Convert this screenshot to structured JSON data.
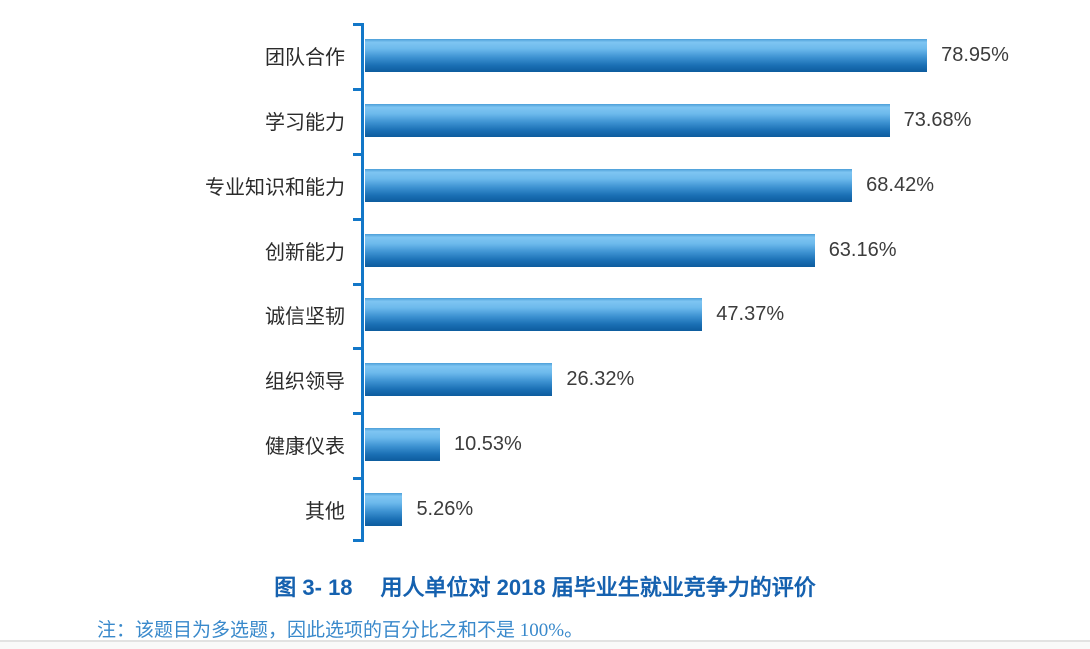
{
  "chart_data": {
    "type": "bar",
    "orientation": "horizontal",
    "categories": [
      "团队合作",
      "学习能力",
      "专业知识和能力",
      "创新能力",
      "诚信坚韧",
      "组织领导",
      "健康仪表",
      "其他"
    ],
    "values": [
      78.95,
      73.68,
      68.42,
      63.16,
      47.37,
      26.32,
      10.53,
      5.26
    ],
    "value_labels": [
      "78.95%",
      "73.68%",
      "68.42%",
      "63.16%",
      "47.37%",
      "26.32%",
      "10.53%",
      "5.26%"
    ],
    "title": "图 3- 18　用人单位对 2018 届毕业生就业竞争力的评价",
    "xlabel": "",
    "ylabel": "",
    "xlim": [
      0,
      85
    ],
    "grid": false,
    "legend": false,
    "bar_gradient_top": "#7EC5F2",
    "bar_gradient_bottom": "#0D5C9E",
    "axis_color": "#1277C8"
  },
  "caption": {
    "prefix": "图 3- 18",
    "text": "用人单位对 2018 届毕业生就业竞争力的评价"
  },
  "note": {
    "text": "注：该题目为多选题，因此选项的百分比之和不是 100%。"
  },
  "colors": {
    "title_blue": "#1561AF",
    "note_blue": "#3989CB",
    "value_text": "#3C3C3C",
    "category_text": "#2B2B2B"
  }
}
